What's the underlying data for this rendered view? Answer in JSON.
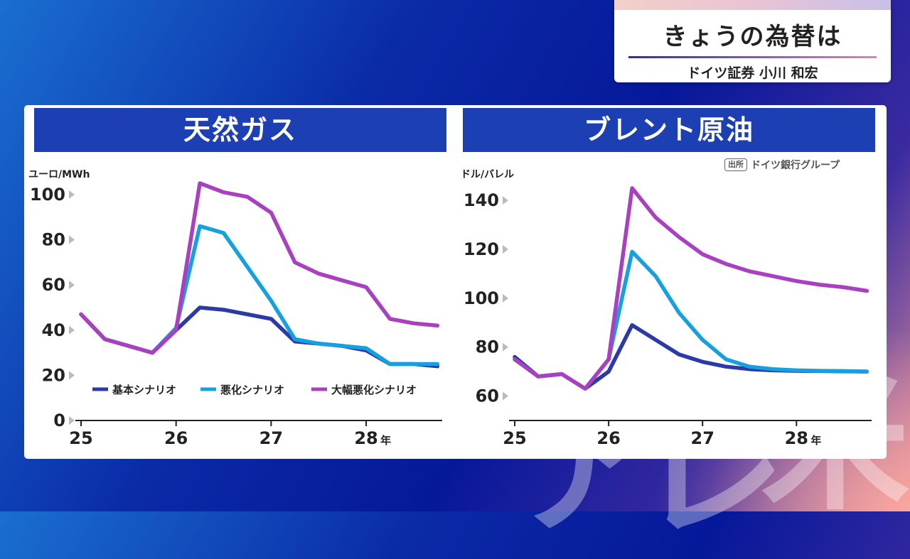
{
  "header": {
    "title": "きょうの為替は",
    "subtitle": "ドイツ証券  小川 和宏"
  },
  "source": {
    "badge": "出所",
    "text": "ドイツ銀行グループ"
  },
  "background_glyphs": [
    "ア",
    "レ",
    "米"
  ],
  "chart_data": [
    {
      "type": "line",
      "title": "天然ガス",
      "ylabel": "ユーロ/MWh",
      "x_unit": "年",
      "ylim": [
        0,
        105
      ],
      "xlim": [
        25,
        28.8
      ],
      "yticks": [
        0,
        20,
        40,
        60,
        80,
        100
      ],
      "xticks": [
        25,
        26,
        27,
        28
      ],
      "xtick_labels": [
        "25",
        "26",
        "27",
        "28"
      ],
      "legend": [
        "基本シナリオ",
        "悪化シナリオ",
        "大幅悪化シナリオ"
      ],
      "legend_position": "bottom",
      "series": [
        {
          "name": "基本シナリオ",
          "color": "#2b3aa6",
          "x": [
            25.0,
            25.25,
            25.5,
            25.75,
            26.0,
            26.25,
            26.5,
            26.75,
            27.0,
            27.25,
            27.5,
            27.75,
            28.0,
            28.25,
            28.5,
            28.75
          ],
          "y": [
            47,
            36,
            33,
            30,
            40,
            50,
            49,
            47,
            45,
            35,
            34,
            33,
            31,
            25,
            25,
            24
          ]
        },
        {
          "name": "悪化シナリオ",
          "color": "#17a0e0",
          "x": [
            25.0,
            25.25,
            25.5,
            25.75,
            26.0,
            26.25,
            26.5,
            26.75,
            27.0,
            27.25,
            27.5,
            27.75,
            28.0,
            28.25,
            28.5,
            28.75
          ],
          "y": [
            47,
            36,
            33,
            30,
            41,
            86,
            83,
            68,
            53,
            36,
            34,
            33,
            32,
            25,
            25,
            25
          ]
        },
        {
          "name": "大幅悪化シナリオ",
          "color": "#a840c0",
          "x": [
            25.0,
            25.25,
            25.5,
            25.75,
            26.0,
            26.25,
            26.5,
            26.75,
            27.0,
            27.25,
            27.5,
            27.75,
            28.0,
            28.25,
            28.5,
            28.75
          ],
          "y": [
            47,
            36,
            33,
            30,
            40,
            105,
            101,
            99,
            92,
            70,
            65,
            62,
            59,
            45,
            43,
            42
          ]
        }
      ]
    },
    {
      "type": "line",
      "title": "ブレント原油",
      "ylabel": "ドル/バレル",
      "x_unit": "年",
      "ylim": [
        50,
        147
      ],
      "xlim": [
        25,
        28.8
      ],
      "yticks": [
        60,
        80,
        100,
        120,
        140
      ],
      "xticks": [
        25,
        26,
        27,
        28
      ],
      "xtick_labels": [
        "25",
        "26",
        "27",
        "28"
      ],
      "series": [
        {
          "name": "基本シナリオ",
          "color": "#2b3aa6",
          "x": [
            25.0,
            25.25,
            25.5,
            25.75,
            26.0,
            26.25,
            26.5,
            26.75,
            27.0,
            27.25,
            27.5,
            27.75,
            28.0,
            28.25,
            28.5,
            28.75
          ],
          "y": [
            76,
            68,
            69,
            63,
            70,
            89,
            83,
            77,
            74,
            72,
            71,
            70.5,
            70.3,
            70.2,
            70.1,
            70
          ]
        },
        {
          "name": "悪化シナリオ",
          "color": "#17a0e0",
          "x": [
            25.0,
            25.25,
            25.5,
            25.75,
            26.0,
            26.25,
            26.5,
            26.75,
            27.0,
            27.25,
            27.5,
            27.75,
            28.0,
            28.25,
            28.5,
            28.75
          ],
          "y": [
            75,
            68,
            69,
            63,
            75,
            119,
            109,
            94,
            83,
            75,
            72,
            71,
            70.5,
            70.3,
            70.2,
            70
          ]
        },
        {
          "name": "大幅悪化シナリオ",
          "color": "#a840c0",
          "x": [
            25.0,
            25.25,
            25.5,
            25.75,
            26.0,
            26.25,
            26.5,
            26.75,
            27.0,
            27.25,
            27.5,
            27.75,
            28.0,
            28.25,
            28.5,
            28.75
          ],
          "y": [
            75,
            68,
            69,
            63,
            75,
            145,
            133,
            125,
            118,
            114,
            111,
            109,
            107,
            105.5,
            104.5,
            103
          ]
        }
      ]
    }
  ]
}
